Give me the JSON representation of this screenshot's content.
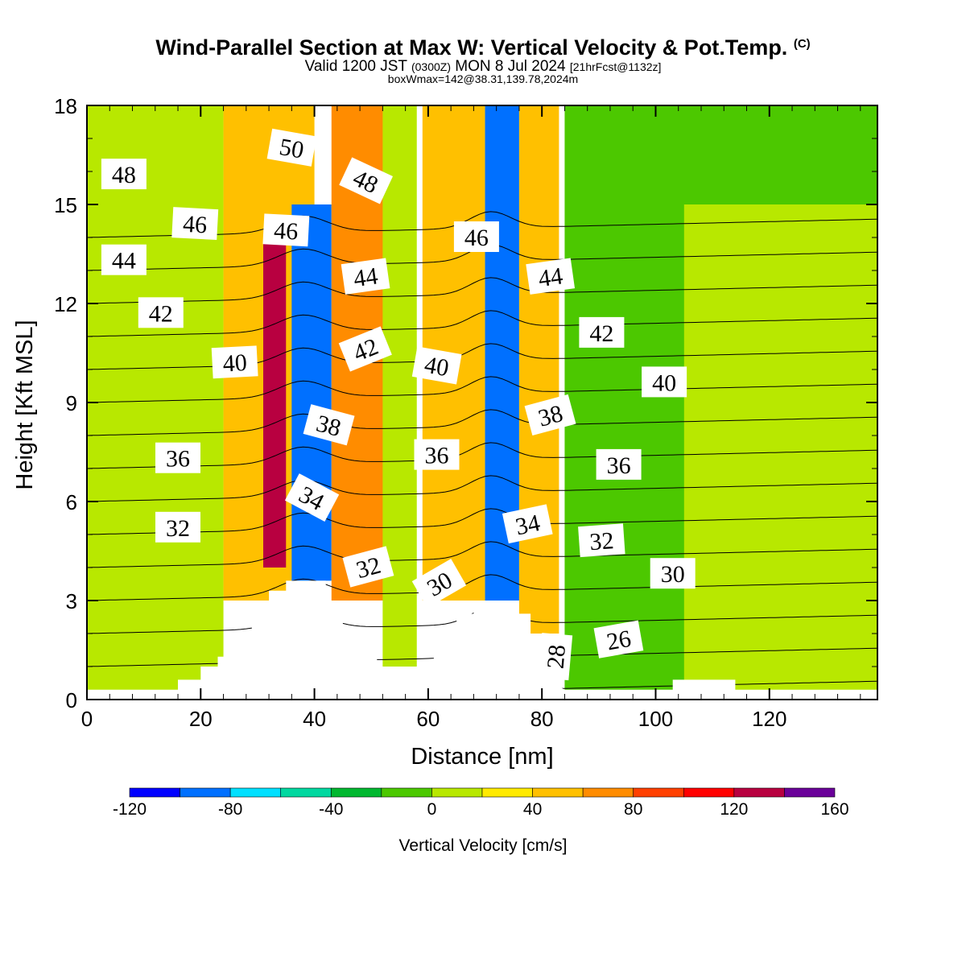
{
  "header": {
    "title": "Wind-Parallel Section at Max W: Vertical Velocity & Pot.Temp.",
    "copyright": "(C)",
    "valid_main": "Valid 1200 JST",
    "valid_utc": "(0300Z)",
    "valid_date": "MON 8 Jul 2024",
    "valid_fcst": "[21hrFcst@1132z]",
    "box_info": "boxWmax=142@38.31,139.78,2024m"
  },
  "chart_data": {
    "type": "heatmap",
    "xlabel": "Distance [nm]",
    "ylabel": "Height [Kft MSL]",
    "xlim": [
      0,
      139
    ],
    "ylim": [
      0,
      18
    ],
    "x_ticks": [
      0,
      20,
      40,
      60,
      80,
      100,
      120
    ],
    "y_ticks": [
      0,
      3,
      6,
      9,
      12,
      15,
      18
    ],
    "colorbar": {
      "label": "Vertical Velocity [cm/s]",
      "levels": [
        -120,
        -100,
        -80,
        -60,
        -40,
        -20,
        0,
        20,
        40,
        60,
        80,
        100,
        120,
        140,
        160
      ],
      "tick_labels": [
        -120,
        -80,
        -40,
        0,
        40,
        80,
        120,
        160
      ],
      "colors": [
        "#0000ff",
        "#0070ff",
        "#00e0ff",
        "#00d8a0",
        "#00b830",
        "#4cc800",
        "#b8e800",
        "#ffea00",
        "#ffc000",
        "#ff8c00",
        "#ff4000",
        "#ff0000",
        "#b80040",
        "#6a0099"
      ]
    },
    "vertical_velocity_cm_s": [
      {
        "x": [
          0,
          24
        ],
        "y": [
          0,
          18
        ],
        "value": 10,
        "note": "background"
      },
      {
        "x": [
          24,
          40
        ],
        "y": [
          3,
          18
        ],
        "value": 50
      },
      {
        "x": [
          31,
          35
        ],
        "y": [
          4,
          14
        ],
        "value": 125
      },
      {
        "x": [
          36,
          43
        ],
        "y": [
          3.6,
          15
        ],
        "value": -95
      },
      {
        "x": [
          43,
          53
        ],
        "y": [
          3,
          18
        ],
        "value": 60
      },
      {
        "x": [
          52,
          58
        ],
        "y": [
          1,
          18
        ],
        "value": 10
      },
      {
        "x": [
          59,
          70
        ],
        "y": [
          3,
          18
        ],
        "value": 55
      },
      {
        "x": [
          70,
          76
        ],
        "y": [
          3,
          18
        ],
        "value": -95
      },
      {
        "x": [
          76,
          83
        ],
        "y": [
          2,
          18
        ],
        "value": 55
      },
      {
        "x": [
          84,
          139
        ],
        "y": [
          0,
          18
        ],
        "value": -10,
        "note": "green east region"
      },
      {
        "x": [
          105,
          139
        ],
        "y": [
          0,
          15
        ],
        "value": 10
      }
    ],
    "topography_kft": {
      "x": [
        0,
        16,
        16,
        20,
        20,
        23,
        23,
        26,
        26,
        29,
        29,
        32,
        32,
        35,
        35,
        42,
        42,
        45,
        45,
        48,
        48,
        51,
        51,
        55,
        55,
        58,
        58,
        61,
        61,
        65,
        65,
        68,
        68,
        75,
        75,
        78,
        78,
        81,
        81,
        84,
        84,
        103,
        103,
        114,
        114,
        139
      ],
      "y": [
        0.3,
        0.3,
        0.6,
        0.6,
        1,
        1,
        1.3,
        1.3,
        1.6,
        1.6,
        2.6,
        2.6,
        3.3,
        3.3,
        3.6,
        3.6,
        2.6,
        2.6,
        2,
        2,
        1.6,
        1.6,
        1,
        1,
        0.6,
        0.6,
        1,
        1,
        1.6,
        1.6,
        2.6,
        2.6,
        3,
        3,
        2.6,
        2.6,
        1.6,
        1.6,
        0.6,
        0.3,
        0.3,
        0.3,
        0.6,
        0.6,
        0.3,
        0.3
      ]
    },
    "potential_temperature_c": {
      "contour_interval": 2,
      "labels": [
        {
          "value": 50,
          "x": 36,
          "y": 16.7,
          "angle": 10
        },
        {
          "value": 48,
          "x": 49,
          "y": 15.7,
          "angle": 25
        },
        {
          "value": 48,
          "x": 6.5,
          "y": 15.9,
          "angle": 0
        },
        {
          "value": 46,
          "x": 19,
          "y": 14.4,
          "angle": 3
        },
        {
          "value": 46,
          "x": 35,
          "y": 14.2,
          "angle": 3
        },
        {
          "value": 46,
          "x": 68.5,
          "y": 14,
          "angle": 0
        },
        {
          "value": 44,
          "x": 6.5,
          "y": 13.3,
          "angle": 0
        },
        {
          "value": 44,
          "x": 49,
          "y": 12.8,
          "angle": -8
        },
        {
          "value": 44,
          "x": 81.5,
          "y": 12.8,
          "angle": -8
        },
        {
          "value": 42,
          "x": 13,
          "y": 11.7,
          "angle": 0
        },
        {
          "value": 42,
          "x": 49,
          "y": 10.6,
          "angle": -22
        },
        {
          "value": 42,
          "x": 90.5,
          "y": 11.1,
          "angle": 0
        },
        {
          "value": 40,
          "x": 26,
          "y": 10.2,
          "angle": -3
        },
        {
          "value": 40,
          "x": 61.5,
          "y": 10.1,
          "angle": 10
        },
        {
          "value": 40,
          "x": 101.5,
          "y": 9.6,
          "angle": 0
        },
        {
          "value": 38,
          "x": 42.5,
          "y": 8.3,
          "angle": 15
        },
        {
          "value": 38,
          "x": 81.5,
          "y": 8.6,
          "angle": -15
        },
        {
          "value": 36,
          "x": 16,
          "y": 7.3,
          "angle": 0
        },
        {
          "value": 36,
          "x": 61.5,
          "y": 7.4,
          "angle": 0
        },
        {
          "value": 36,
          "x": 93.5,
          "y": 7.1,
          "angle": 0
        },
        {
          "value": 34,
          "x": 39.5,
          "y": 6.1,
          "angle": 28
        },
        {
          "value": 34,
          "x": 77.5,
          "y": 5.3,
          "angle": -12
        },
        {
          "value": 32,
          "x": 16,
          "y": 5.2,
          "angle": 0
        },
        {
          "value": 32,
          "x": 49.5,
          "y": 4,
          "angle": -15
        },
        {
          "value": 32,
          "x": 90.5,
          "y": 4.8,
          "angle": -4
        },
        {
          "value": 30,
          "x": 62,
          "y": 3.5,
          "angle": -30
        },
        {
          "value": 30,
          "x": 103,
          "y": 3.8,
          "angle": 0
        },
        {
          "value": 28,
          "x": 82.5,
          "y": 1.3,
          "angle": -85
        },
        {
          "value": 26,
          "x": 93.5,
          "y": 1.8,
          "angle": -10
        }
      ]
    }
  }
}
